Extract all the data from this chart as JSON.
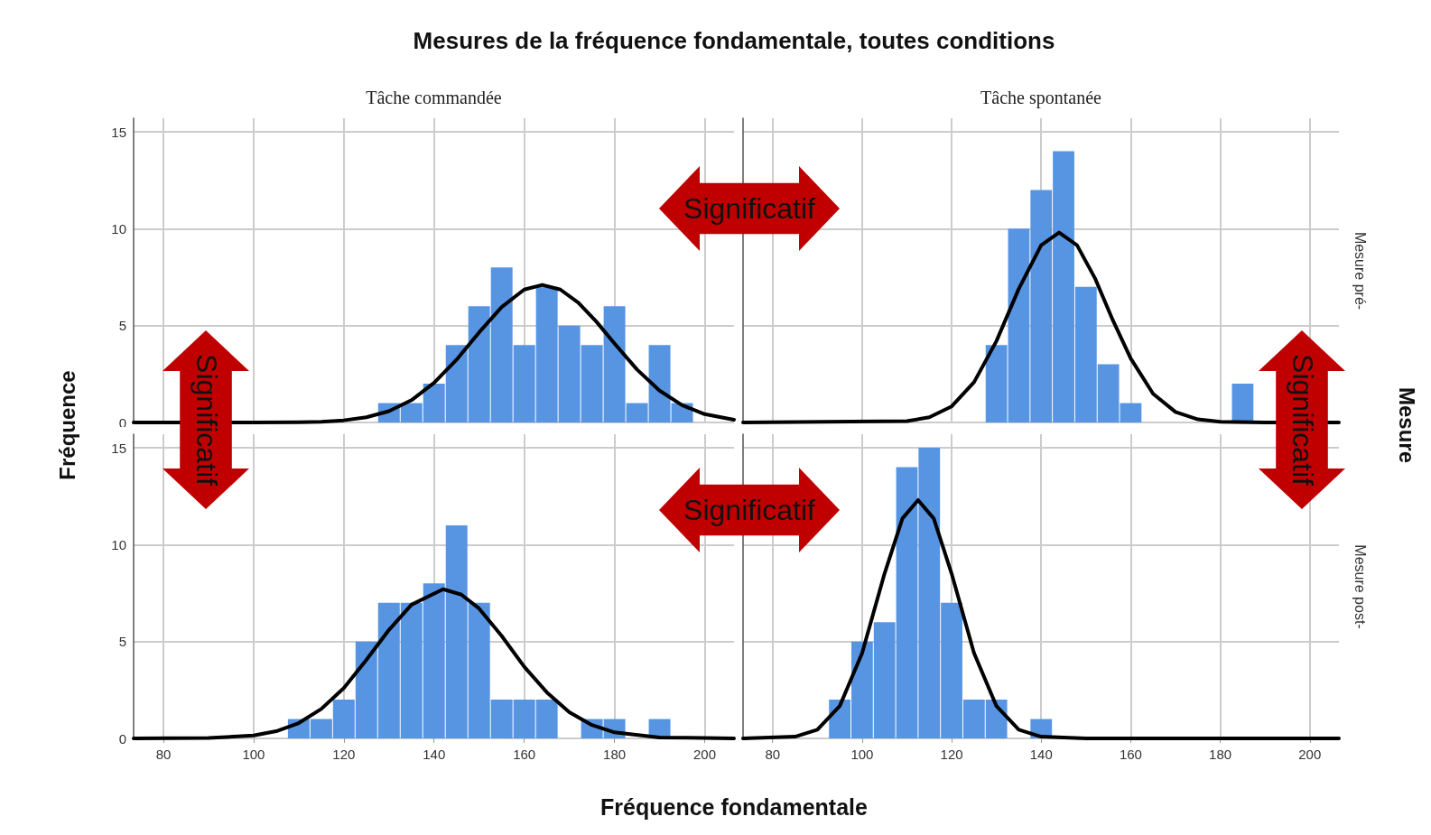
{
  "chart_data": [
    {
      "type": "histogram",
      "title": "Mesures de la fréquence fondamentale, toutes conditions",
      "subtitle": "Tâche commandée",
      "xlabel": "Fréquence fondamentale",
      "ylabel": "Fréquence",
      "y2label": "Mesure",
      "annotations": [
        "Significatif",
        "Significatif"
      ],
      "xlim": [
        73.4,
        206.5
      ],
      "xticks": [
        80,
        100,
        120,
        140,
        160,
        180,
        200
      ],
      "ylim": [
        0,
        15.7
      ],
      "yticks": [
        0,
        5,
        10,
        15
      ],
      "grid": true,
      "tick_labels": "y",
      "series": [
        {
          "type": "histogram",
          "color": "#5795e3",
          "bins": [
            127.5,
            132.5,
            137.5,
            142.5,
            147.5,
            152.5,
            157.5,
            162.5,
            167.5,
            172.5,
            177.5,
            182.5,
            187.5,
            192.5,
            197.5
          ],
          "values": [
            1,
            1,
            2,
            4,
            6,
            8,
            4,
            7,
            5,
            4,
            6,
            1,
            4,
            1
          ]
        },
        {
          "type": "line",
          "color": "#000000",
          "marker": "none",
          "line_style": "solid",
          "x": [
            73.4,
            100,
            110,
            115,
            120,
            125,
            130,
            135,
            140,
            145,
            150,
            155,
            160,
            164,
            168,
            172,
            176,
            180,
            185,
            190,
            195,
            200,
            206.5
          ],
          "values": [
            0,
            0,
            0.01,
            0.04,
            0.11,
            0.27,
            0.58,
            1.15,
            2.04,
            3.24,
            4.65,
            5.96,
            6.86,
            7.1,
            6.86,
            6.18,
            5.2,
            4.08,
            2.73,
            1.64,
            0.89,
            0.43,
            0.14
          ]
        }
      ]
    },
    {
      "type": "histogram",
      "subtitle": "Tâche spontanée",
      "y2label": "Mesure pré-",
      "xlim": [
        73.4,
        206.5
      ],
      "xticks": [
        80,
        100,
        120,
        140,
        160,
        180,
        200
      ],
      "ylim": [
        0,
        15.7
      ],
      "yticks": [
        0,
        5,
        10,
        15
      ],
      "grid": true,
      "tick_labels": false,
      "series": [
        {
          "type": "histogram",
          "color": "#5795e3",
          "bins": [
            127.5,
            132.5,
            137.5,
            142.5,
            147.5,
            152.5,
            157.5,
            162.5,
            167.5,
            172.5,
            177.5,
            182.5,
            187.5
          ],
          "values": [
            4,
            10,
            12,
            14,
            7,
            3,
            1,
            0,
            0,
            0,
            0,
            2
          ]
        },
        {
          "type": "line",
          "color": "#000000",
          "marker": "none",
          "line_style": "solid",
          "x": [
            73.4,
            110,
            115,
            120,
            125,
            130,
            135,
            140,
            144,
            148,
            152,
            156,
            160,
            165,
            170,
            175,
            180,
            190,
            206.5
          ],
          "values": [
            0,
            0.07,
            0.27,
            0.83,
            2.08,
            4.2,
            6.9,
            9.15,
            9.8,
            9.15,
            7.45,
            5.28,
            3.3,
            1.48,
            0.54,
            0.16,
            0.04,
            0,
            0
          ]
        }
      ]
    },
    {
      "type": "histogram",
      "xlim": [
        73.4,
        206.5
      ],
      "xticks": [
        80,
        100,
        120,
        140,
        160,
        180,
        200
      ],
      "ylim": [
        0,
        15.7
      ],
      "yticks": [
        0,
        5,
        10,
        15
      ],
      "grid": true,
      "series": [
        {
          "type": "histogram",
          "color": "#5795e3",
          "bins": [
            107.5,
            112.5,
            117.5,
            122.5,
            127.5,
            132.5,
            137.5,
            142.5,
            147.5,
            152.5,
            157.5,
            162.5,
            167.5,
            172.5,
            177.5,
            182.5,
            187.5,
            192.5
          ],
          "values": [
            1,
            1,
            2,
            5,
            7,
            7,
            8,
            11,
            7,
            2,
            2,
            2,
            0,
            1,
            1,
            0,
            1
          ]
        },
        {
          "type": "line",
          "color": "#000000",
          "marker": "none",
          "line_style": "solid",
          "x": [
            73.4,
            90,
            100,
            105,
            110,
            115,
            120,
            125,
            130,
            135,
            142,
            146,
            150,
            155,
            160,
            165,
            170,
            175,
            180,
            190,
            206.5
          ],
          "values": [
            0,
            0.02,
            0.15,
            0.37,
            0.79,
            1.52,
            2.6,
            4.05,
            5.6,
            6.9,
            7.7,
            7.43,
            6.7,
            5.29,
            3.7,
            2.38,
            1.35,
            0.69,
            0.31,
            0.05,
            0
          ]
        }
      ]
    },
    {
      "type": "histogram",
      "y2label": "Mesure post-",
      "annotations": [
        "Significatif",
        "Significatif"
      ],
      "xlim": [
        73.4,
        206.5
      ],
      "xticks": [
        80,
        100,
        120,
        140,
        160,
        180,
        200
      ],
      "ylim": [
        0,
        15.7
      ],
      "yticks": [
        0,
        5,
        10,
        15
      ],
      "grid": true,
      "tick_labels": "x",
      "series": [
        {
          "type": "histogram",
          "color": "#5795e3",
          "bins": [
            92.5,
            97.5,
            102.5,
            107.5,
            112.5,
            117.5,
            122.5,
            127.5,
            132.5,
            137.5,
            142.5
          ],
          "values": [
            2,
            5,
            6,
            14,
            15,
            7,
            2,
            2,
            0,
            1
          ]
        },
        {
          "type": "line",
          "color": "#000000",
          "marker": "none",
          "line_style": "solid",
          "x": [
            73.4,
            85,
            90,
            95,
            100,
            105,
            109,
            112.5,
            116,
            120,
            125,
            130,
            135,
            140,
            150,
            206.5
          ],
          "values": [
            0,
            0.09,
            0.45,
            1.67,
            4.4,
            8.5,
            11.35,
            12.3,
            11.35,
            8.5,
            4.4,
            1.67,
            0.45,
            0.09,
            0,
            0
          ]
        }
      ]
    }
  ]
}
